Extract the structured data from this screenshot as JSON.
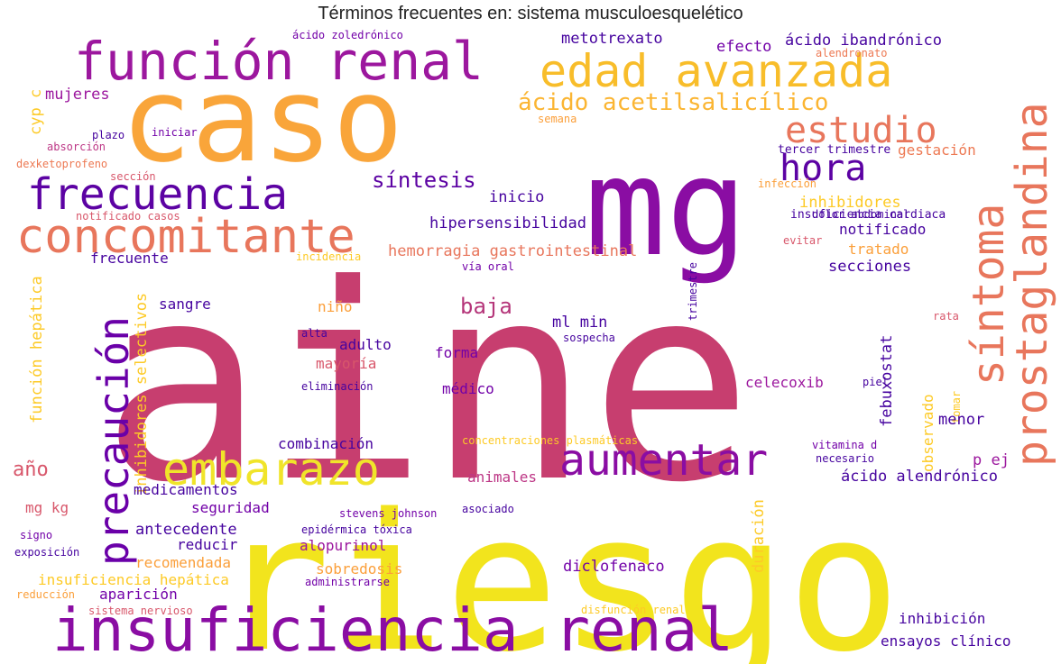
{
  "title": "Términos frecuentes en: sistema musculoesquelético",
  "palette": [
    "#0d0887",
    "#46039f",
    "#7201a8",
    "#9c179e",
    "#bd3786",
    "#d8576b",
    "#ed7953",
    "#fb9f3a",
    "#fdca26",
    "#f0f921"
  ],
  "words": [
    {
      "text": "aine",
      "color": "#c73e6f"
    },
    {
      "text": "riesgo",
      "color": "#f2e41d"
    },
    {
      "text": "caso",
      "color": "#f9a53a"
    },
    {
      "text": "mg",
      "color": "#8a0da3"
    },
    {
      "text": "insuficiencia renal",
      "color": "#8a0da3"
    },
    {
      "text": "función renal",
      "color": "#9c179e"
    },
    {
      "text": "edad avanzada",
      "color": "#f8bd2a"
    },
    {
      "text": "concomitante",
      "color": "#e8765c"
    },
    {
      "text": "frecuencia",
      "color": "#5c02a3"
    },
    {
      "text": "prostaglandina",
      "color": "#e8765c"
    },
    {
      "text": "síntoma",
      "color": "#e8765c"
    },
    {
      "text": "precaución",
      "color": "#6a00a8"
    },
    {
      "text": "embarazo",
      "color": "#f0e42a"
    },
    {
      "text": "aumentar",
      "color": "#8a0da3"
    },
    {
      "text": "estudio",
      "color": "#e8765c"
    },
    {
      "text": "hora",
      "color": "#5c02a3"
    },
    {
      "text": "ácido acetilsalicílico",
      "color": "#fbb532"
    },
    {
      "text": "síntesis",
      "color": "#5c02a3"
    },
    {
      "text": "baja",
      "color": "#b5367a"
    },
    {
      "text": "hipersensibilidad",
      "color": "#46039f"
    },
    {
      "text": "hemorragia gastrointestinal",
      "color": "#e8765c"
    },
    {
      "text": "metotrexato",
      "color": "#46039f"
    },
    {
      "text": "efecto",
      "color": "#7201a8"
    },
    {
      "text": "ácido ibandrónico",
      "color": "#46039f"
    },
    {
      "text": "alendronato",
      "color": "#ed7953"
    },
    {
      "text": "ácido zoledrónico",
      "color": "#7201a8"
    },
    {
      "text": "mujeres",
      "color": "#9c179e"
    },
    {
      "text": "cyp c",
      "color": "#fdca26"
    },
    {
      "text": "plazo",
      "color": "#46039f"
    },
    {
      "text": "iniciar",
      "color": "#7201a8"
    },
    {
      "text": "absorción",
      "color": "#bd3786"
    },
    {
      "text": "dexketoprofeno",
      "color": "#ed7953"
    },
    {
      "text": "sección",
      "color": "#d8576b"
    },
    {
      "text": "semana",
      "color": "#fb9f3a"
    },
    {
      "text": "tercer trimestre",
      "color": "#46039f"
    },
    {
      "text": "gestación",
      "color": "#ed7953"
    },
    {
      "text": "infección",
      "color": "#fb9f3a"
    },
    {
      "text": "inhibidores",
      "color": "#fdca26"
    },
    {
      "text": "inicio",
      "color": "#46039f"
    },
    {
      "text": "insuficiencia cardiaca",
      "color": "#46039f"
    },
    {
      "text": "dolor abdominal",
      "color": "#46039f"
    },
    {
      "text": "notificado",
      "color": "#46039f"
    },
    {
      "text": "notificado casos",
      "color": "#d8576b"
    },
    {
      "text": "evitar",
      "color": "#d8576b"
    },
    {
      "text": "tratado",
      "color": "#fb9f3a"
    },
    {
      "text": "frecuente",
      "color": "#46039f"
    },
    {
      "text": "incidencia",
      "color": "#fdca26"
    },
    {
      "text": "vía oral",
      "color": "#7201a8"
    },
    {
      "text": "secciones",
      "color": "#46039f"
    },
    {
      "text": "trimestre",
      "color": "#46039f"
    },
    {
      "text": "función hepática",
      "color": "#fdca26"
    },
    {
      "text": "inhibidores selectivos",
      "color": "#fdca26"
    },
    {
      "text": "sangre",
      "color": "#46039f"
    },
    {
      "text": "niño",
      "color": "#fb9f3a"
    },
    {
      "text": "ml min",
      "color": "#46039f"
    },
    {
      "text": "febuxostat",
      "color": "#46039f"
    },
    {
      "text": "rata",
      "color": "#d8576b"
    },
    {
      "text": "alta",
      "color": "#46039f"
    },
    {
      "text": "adulto",
      "color": "#46039f"
    },
    {
      "text": "sospecha",
      "color": "#46039f"
    },
    {
      "text": "mayoría",
      "color": "#d8576b"
    },
    {
      "text": "forma",
      "color": "#7201a8"
    },
    {
      "text": "eliminación",
      "color": "#46039f"
    },
    {
      "text": "médico",
      "color": "#7201a8"
    },
    {
      "text": "celecoxib",
      "color": "#9c179e"
    },
    {
      "text": "piel",
      "color": "#46039f"
    },
    {
      "text": "tomar",
      "color": "#fdca26"
    },
    {
      "text": "menor",
      "color": "#46039f"
    },
    {
      "text": "año",
      "color": "#d8576b"
    },
    {
      "text": "combinación",
      "color": "#46039f"
    },
    {
      "text": "concentraciones plasmáticas",
      "color": "#fdca26"
    },
    {
      "text": "vitamina d",
      "color": "#7201a8"
    },
    {
      "text": "necesario",
      "color": "#46039f"
    },
    {
      "text": "observado",
      "color": "#fdca26"
    },
    {
      "text": "p ej",
      "color": "#9c179e"
    },
    {
      "text": "animales",
      "color": "#bd3786"
    },
    {
      "text": "ácido alendrónico",
      "color": "#46039f"
    },
    {
      "text": "medicamentos",
      "color": "#46039f"
    },
    {
      "text": "mg kg",
      "color": "#d8576b"
    },
    {
      "text": "seguridad",
      "color": "#7201a8"
    },
    {
      "text": "stevens johnson",
      "color": "#7201a8"
    },
    {
      "text": "asociado",
      "color": "#46039f"
    },
    {
      "text": "signo",
      "color": "#7201a8"
    },
    {
      "text": "antecedente",
      "color": "#46039f"
    },
    {
      "text": "epidérmica tóxica",
      "color": "#46039f"
    },
    {
      "text": "duración",
      "color": "#fdca26"
    },
    {
      "text": "reducir",
      "color": "#46039f"
    },
    {
      "text": "alopurinol",
      "color": "#9c179e"
    },
    {
      "text": "exposición",
      "color": "#46039f"
    },
    {
      "text": "recomendada",
      "color": "#fb9f3a"
    },
    {
      "text": "sobredosis",
      "color": "#fb9f3a"
    },
    {
      "text": "diclofenaco",
      "color": "#7201a8"
    },
    {
      "text": "insuficiencia hepática",
      "color": "#fdca26"
    },
    {
      "text": "aparición",
      "color": "#7201a8"
    },
    {
      "text": "reducción",
      "color": "#fb9f3a"
    },
    {
      "text": "administrarse",
      "color": "#7201a8"
    },
    {
      "text": "sistema nervioso",
      "color": "#d8576b"
    },
    {
      "text": "disfunción renal",
      "color": "#fdca26"
    },
    {
      "text": "inhibición",
      "color": "#46039f"
    },
    {
      "text": "ensayos clínico",
      "color": "#46039f"
    }
  ]
}
